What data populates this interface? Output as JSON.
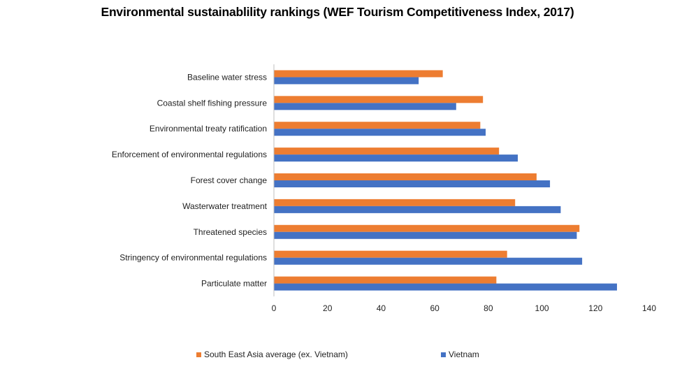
{
  "chart_data": {
    "type": "bar",
    "orientation": "horizontal",
    "title": "Environmental sustainablility rankings (WEF Tourism Competitiveness Index, 2017)",
    "xlabel": "",
    "ylabel": "",
    "categories": [
      "Baseline water stress",
      "Coastal shelf fishing pressure",
      "Environmental treaty ratification",
      "Enforcement of environmental regulations",
      "Forest cover change",
      "Wasterwater treatment",
      "Threatened species",
      "Stringency of environmental regulations",
      "Particulate matter"
    ],
    "series": [
      {
        "name": "South East Asia average (ex. Vietnam)",
        "color": "#ED7D31",
        "values": [
          63,
          78,
          77,
          84,
          98,
          90,
          114,
          87,
          83
        ]
      },
      {
        "name": "Vietnam",
        "color": "#4472C4",
        "values": [
          54,
          68,
          79,
          91,
          103,
          107,
          113,
          115,
          128
        ]
      }
    ],
    "xlim": [
      0,
      140
    ],
    "xticks": [
      0,
      20,
      40,
      60,
      80,
      100,
      120,
      140
    ],
    "grid": false,
    "legend": "bottom"
  }
}
